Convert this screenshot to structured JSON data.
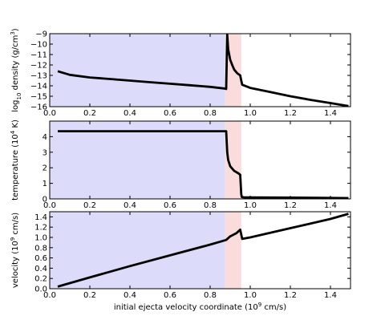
{
  "chart_data": [
    {
      "type": "line",
      "title": "",
      "xlabel": "",
      "ylabel": "log",
      "ylabel_sub": "10",
      "ylabel_mid": " density (g/cm",
      "ylabel_sup": "3",
      "ylabel_end": ")",
      "xlim": [
        0.0,
        1.5
      ],
      "ylim": [
        -16,
        -9
      ],
      "xticks": [
        0.0,
        0.2,
        0.4,
        0.6,
        0.8,
        1.0,
        1.2,
        1.4
      ],
      "xtick_labels": [
        "0.0",
        "0.2",
        "0.4",
        "0.6",
        "0.8",
        "1.0",
        "1.2",
        "1.4"
      ],
      "yticks": [
        -16,
        -15,
        -14,
        -13,
        -12,
        -11,
        -10,
        -9
      ],
      "ytick_labels": [
        "−16",
        "−15",
        "−14",
        "−13",
        "−12",
        "−11",
        "−10",
        "−9"
      ],
      "regions": [
        {
          "x0": 0.0,
          "x1": 0.875,
          "color": "#dcdcfa"
        },
        {
          "x0": 0.875,
          "x1": 0.955,
          "color": "#fadcdc"
        }
      ],
      "series": [
        {
          "color": "#000000",
          "x": [
            0.04,
            0.1,
            0.2,
            0.3,
            0.4,
            0.5,
            0.6,
            0.7,
            0.8,
            0.87,
            0.88,
            0.885,
            0.89,
            0.9,
            0.91,
            0.92,
            0.935,
            0.95,
            0.955,
            0.96,
            1.0,
            1.1,
            1.2,
            1.3,
            1.4,
            1.49
          ],
          "y": [
            -12.6,
            -12.95,
            -13.2,
            -13.35,
            -13.5,
            -13.65,
            -13.8,
            -13.95,
            -14.1,
            -14.25,
            -14.3,
            -9.1,
            -10.5,
            -11.5,
            -12.0,
            -12.45,
            -12.8,
            -13.0,
            -13.5,
            -13.9,
            -14.2,
            -14.6,
            -15.0,
            -15.35,
            -15.65,
            -15.95
          ]
        }
      ]
    },
    {
      "type": "line",
      "title": "",
      "xlabel": "",
      "ylabel": "temperature (10",
      "ylabel_sup": "4",
      "ylabel_end": " K)",
      "xlim": [
        0.0,
        1.5
      ],
      "ylim": [
        0,
        5
      ],
      "xticks": [
        0.0,
        0.2,
        0.4,
        0.6,
        0.8,
        1.0,
        1.2,
        1.4
      ],
      "xtick_labels": [
        "0.0",
        "0.2",
        "0.4",
        "0.6",
        "0.8",
        "1.0",
        "1.2",
        "1.4"
      ],
      "yticks": [
        0,
        1,
        2,
        3,
        4
      ],
      "ytick_labels": [
        "0",
        "1",
        "2",
        "3",
        "4"
      ],
      "regions": [
        {
          "x0": 0.0,
          "x1": 0.875,
          "color": "#dcdcfa"
        },
        {
          "x0": 0.875,
          "x1": 0.955,
          "color": "#fadcdc"
        }
      ],
      "series": [
        {
          "color": "#000000",
          "x": [
            0.04,
            0.2,
            0.4,
            0.6,
            0.8,
            0.88,
            0.885,
            0.89,
            0.9,
            0.92,
            0.94,
            0.95,
            0.955,
            0.958,
            0.97,
            1.0,
            1.2,
            1.4,
            1.49
          ],
          "y": [
            4.35,
            4.35,
            4.35,
            4.35,
            4.35,
            4.35,
            3.0,
            2.5,
            2.1,
            1.8,
            1.65,
            1.55,
            0.3,
            0.12,
            0.1,
            0.1,
            0.08,
            0.06,
            0.05
          ]
        }
      ]
    },
    {
      "type": "line",
      "title": "",
      "xlabel": "initial ejecta velocity coordinate (10",
      "xlabel_sup": "9",
      "xlabel_end": "  cm/s)",
      "ylabel": "velocity (10",
      "ylabel_sup": "9",
      "ylabel_end": "  cm/s)",
      "xlim": [
        0.0,
        1.5
      ],
      "ylim": [
        0.0,
        1.5
      ],
      "xticks": [
        0.0,
        0.2,
        0.4,
        0.6,
        0.8,
        1.0,
        1.2,
        1.4
      ],
      "xtick_labels": [
        "0.0",
        "0.2",
        "0.4",
        "0.6",
        "0.8",
        "1.0",
        "1.2",
        "1.4"
      ],
      "yticks": [
        0.0,
        0.2,
        0.4,
        0.6,
        0.8,
        1.0,
        1.2,
        1.4
      ],
      "ytick_labels": [
        "0.0",
        "0.2",
        "0.4",
        "0.6",
        "0.8",
        "1.0",
        "1.2",
        "1.4"
      ],
      "regions": [
        {
          "x0": 0.0,
          "x1": 0.875,
          "color": "#dcdcfa"
        },
        {
          "x0": 0.875,
          "x1": 0.955,
          "color": "#fadcdc"
        }
      ],
      "series": [
        {
          "color": "#000000",
          "x": [
            0.04,
            0.2,
            0.4,
            0.6,
            0.8,
            0.88,
            0.9,
            0.93,
            0.95,
            0.96,
            1.0,
            1.2,
            1.4,
            1.49
          ],
          "y": [
            0.04,
            0.22,
            0.44,
            0.65,
            0.86,
            0.95,
            1.02,
            1.08,
            1.15,
            0.97,
            1.0,
            1.18,
            1.36,
            1.46
          ]
        }
      ]
    }
  ]
}
